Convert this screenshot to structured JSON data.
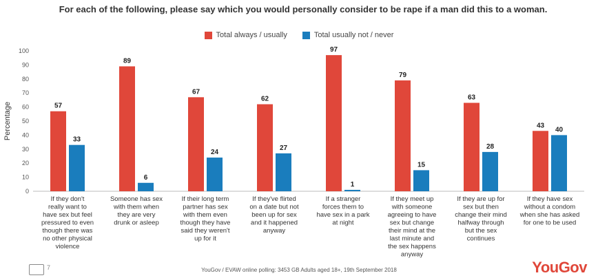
{
  "chart_data": {
    "type": "bar",
    "title": "For each of the following, please say which you would personally consider to be rape if a man did this to a woman.",
    "ylabel": "Percentage",
    "ylim": [
      0,
      100
    ],
    "yticks": [
      0,
      10,
      20,
      30,
      40,
      50,
      60,
      70,
      80,
      90,
      100
    ],
    "categories": [
      "If they don't really want to have sex but feel pressured to even though there was no other physical violence",
      "Someone has sex with them when they are very drunk or asleep",
      "If their long term partner has sex with them even though they have said they weren't up for it",
      "If they've flirted on a date but not been up for sex and it happened anyway",
      "If a stranger forces them to have sex in a park at night",
      "If they meet up with someone agreeing to have sex but change their mind at the last minute and the sex happens anyway",
      "If they are up for sex but then change their mind halfway through but the sex continues",
      "If they have sex without a condom when she has asked for one to be used"
    ],
    "series": [
      {
        "name": "Total always / usually",
        "color": "#e0473a",
        "values": [
          57,
          89,
          67,
          62,
          97,
          79,
          63,
          43
        ]
      },
      {
        "name": "Total usually not / never",
        "color": "#1a7dbd",
        "values": [
          33,
          6,
          24,
          27,
          1,
          15,
          28,
          40
        ]
      }
    ],
    "legend_position": "top-center",
    "grid": false
  },
  "footer": {
    "source": "YouGov / EVAW online polling: 3453 GB Adults aged 18+, 19th September 2018",
    "logo": "YouGov",
    "page_number": "7"
  }
}
